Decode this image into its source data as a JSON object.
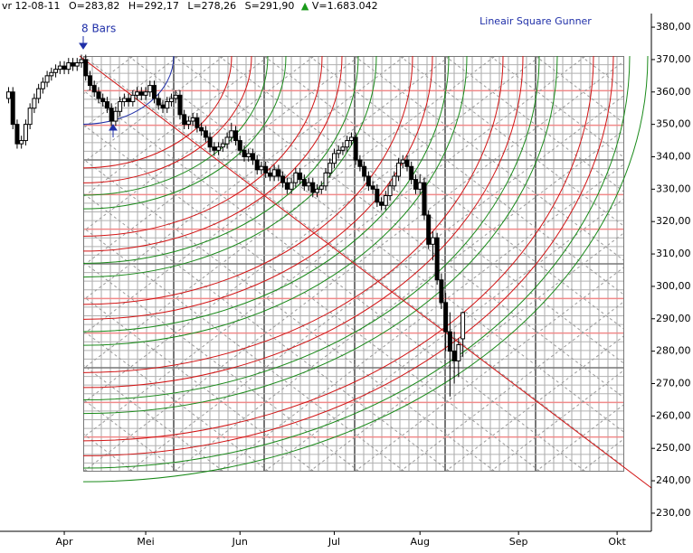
{
  "chart_data": {
    "type": "candlestick",
    "header": {
      "date": "vr 12-08-11",
      "open": "O=283,82",
      "high": "H=292,17",
      "low": "L=278,26",
      "close": "S=291,90",
      "up_symbol": "▲",
      "volume": "V=1.683.042"
    },
    "title": "Lineair Square Gunner",
    "annotation": "8 Bars",
    "xlim": [
      -2,
      150
    ],
    "xticks": [
      {
        "value": 13,
        "label": "Apr"
      },
      {
        "value": 32,
        "label": "Mei"
      },
      {
        "value": 54,
        "label": "Jun"
      },
      {
        "value": 76,
        "label": "Jul"
      },
      {
        "value": 96,
        "label": "Aug"
      },
      {
        "value": 119,
        "label": "Sep"
      },
      {
        "value": 142,
        "label": "Okt"
      }
    ],
    "ylim": [
      224.4,
      384.2
    ],
    "yticks": [
      {
        "value": 380,
        "label": "380,00"
      },
      {
        "value": 370,
        "label": "370,00"
      },
      {
        "value": 360,
        "label": "360,00"
      },
      {
        "value": 350,
        "label": "350,00"
      },
      {
        "value": 340,
        "label": "340,00"
      },
      {
        "value": 330,
        "label": "330,00"
      },
      {
        "value": 320,
        "label": "320,00"
      },
      {
        "value": 310,
        "label": "310,00"
      },
      {
        "value": 300,
        "label": "300,00"
      },
      {
        "value": 290,
        "label": "290,00"
      },
      {
        "value": 280,
        "label": "280,00"
      },
      {
        "value": 270,
        "label": "270,00"
      },
      {
        "value": 260,
        "label": "260,00"
      },
      {
        "value": 250,
        "label": "250,00"
      },
      {
        "value": 240,
        "label": "240,00"
      },
      {
        "value": 230,
        "label": "230,00"
      }
    ],
    "up_color": "#ffffff",
    "down_color": "#000000",
    "wick_color": "#000000",
    "series": [
      {
        "ohlc": [
          [
            358,
            361.5,
            356.5,
            360
          ],
          [
            360,
            361.5,
            348.5,
            350
          ],
          [
            350,
            351.5,
            342.5,
            344
          ],
          [
            344,
            346.5,
            342.5,
            345
          ],
          [
            345,
            351.5,
            343.5,
            350
          ],
          [
            350,
            356.5,
            348.5,
            355
          ],
          [
            355,
            359.5,
            353.5,
            358
          ],
          [
            358,
            362.5,
            356.5,
            361
          ],
          [
            361,
            364.5,
            359.5,
            363
          ],
          [
            363,
            366.5,
            361.5,
            365
          ],
          [
            365,
            367.5,
            363.5,
            366
          ],
          [
            366,
            368.5,
            364.5,
            367
          ],
          [
            367,
            369.5,
            365.5,
            368
          ],
          [
            368,
            369.5,
            365.5,
            367
          ],
          [
            367,
            370.5,
            365.5,
            369
          ],
          [
            369,
            370.5,
            366.5,
            368
          ],
          [
            368,
            370.5,
            366.5,
            369
          ],
          [
            369,
            371.5,
            367.5,
            370
          ],
          [
            370,
            371.5,
            363.5,
            365
          ],
          [
            365,
            366.5,
            360.5,
            362
          ],
          [
            362,
            363.5,
            358.5,
            360
          ],
          [
            360,
            361.5,
            356.5,
            358
          ],
          [
            358,
            359.5,
            355.5,
            357
          ],
          [
            357,
            358.5,
            353.5,
            355
          ],
          [
            355,
            356.5,
            349.5,
            351
          ],
          [
            351,
            355.5,
            349.5,
            354
          ],
          [
            354,
            358.5,
            352.5,
            357
          ],
          [
            357,
            359.5,
            355.5,
            358
          ],
          [
            358,
            359.5,
            355.5,
            357
          ],
          [
            357,
            360.5,
            355.5,
            359
          ],
          [
            359,
            361.5,
            357.5,
            360
          ],
          [
            360,
            361.5,
            357.5,
            359
          ],
          [
            359,
            361.5,
            357.5,
            360
          ],
          [
            360,
            363.5,
            358.5,
            362
          ],
          [
            362,
            363.5,
            356.5,
            358
          ],
          [
            358,
            359.5,
            354.5,
            356
          ],
          [
            356,
            357.5,
            353.5,
            355
          ],
          [
            355,
            358.5,
            353.5,
            357
          ],
          [
            357,
            359.5,
            355.5,
            358
          ],
          [
            358,
            360.5,
            356.5,
            359
          ],
          [
            359,
            360.5,
            351.5,
            353
          ],
          [
            353,
            354.5,
            348.5,
            350
          ],
          [
            350,
            352.5,
            348.5,
            351
          ],
          [
            351,
            353.5,
            349.5,
            352
          ],
          [
            352,
            353.5,
            347.5,
            349
          ],
          [
            349,
            350.5,
            346.5,
            348
          ],
          [
            348,
            349.5,
            344.5,
            346
          ],
          [
            346,
            347.5,
            341.5,
            343
          ],
          [
            343,
            344.5,
            340.5,
            342
          ],
          [
            342,
            344.5,
            340.5,
            343
          ],
          [
            343,
            345.5,
            341.5,
            344
          ],
          [
            344,
            347.5,
            342.5,
            346
          ],
          [
            346,
            350.5,
            344.5,
            348
          ],
          [
            348,
            349.5,
            343.5,
            345
          ],
          [
            345,
            346.5,
            340.5,
            342
          ],
          [
            342,
            343.5,
            338.5,
            340
          ],
          [
            340,
            342.5,
            338.5,
            341
          ],
          [
            341,
            342.5,
            337.5,
            339
          ],
          [
            339,
            340.5,
            334.5,
            336
          ],
          [
            336,
            338.5,
            334.5,
            337
          ],
          [
            337,
            338.5,
            333.5,
            335
          ],
          [
            335,
            336.5,
            332.5,
            334
          ],
          [
            334,
            337.5,
            332.5,
            336
          ],
          [
            336,
            337.5,
            332.5,
            334
          ],
          [
            334,
            335.5,
            330.5,
            332
          ],
          [
            332,
            333.5,
            328.5,
            330
          ],
          [
            330,
            333.5,
            328.5,
            332
          ],
          [
            332,
            336.5,
            330.5,
            335
          ],
          [
            335,
            336.5,
            331.5,
            333
          ],
          [
            333,
            334.5,
            329.5,
            331
          ],
          [
            331,
            333.5,
            329.5,
            332
          ],
          [
            332,
            333.5,
            327.5,
            329
          ],
          [
            329,
            331.5,
            327.5,
            330
          ],
          [
            330,
            332.5,
            328.5,
            331
          ],
          [
            331,
            336.5,
            329.5,
            335
          ],
          [
            335,
            339.5,
            333.5,
            338
          ],
          [
            338,
            342.5,
            336.5,
            341
          ],
          [
            341,
            343.5,
            339.5,
            342
          ],
          [
            342,
            344.5,
            340.5,
            343
          ],
          [
            343,
            346.5,
            341.5,
            345
          ],
          [
            345,
            347.5,
            343.5,
            346
          ],
          [
            346,
            347.5,
            337.5,
            339
          ],
          [
            339,
            340.5,
            335.5,
            337
          ],
          [
            337,
            338.5,
            332.5,
            334
          ],
          [
            334,
            335.5,
            329.5,
            331
          ],
          [
            331,
            332.5,
            328.5,
            330
          ],
          [
            330,
            331.5,
            324.5,
            326
          ],
          [
            326,
            327.5,
            323.5,
            325
          ],
          [
            325,
            329.5,
            323.5,
            328
          ],
          [
            328,
            332.5,
            326.5,
            331
          ],
          [
            331,
            335.5,
            329.5,
            334
          ],
          [
            334,
            339.5,
            332.5,
            338
          ],
          [
            338,
            340.5,
            336.5,
            339
          ],
          [
            339,
            340.5,
            335.5,
            337
          ],
          [
            337,
            338.5,
            331.5,
            333
          ],
          [
            333,
            334.5,
            328.5,
            330
          ],
          [
            330,
            334.5,
            328.5,
            332
          ],
          [
            332,
            333.5,
            320.5,
            322
          ],
          [
            322,
            323.5,
            311.5,
            313
          ],
          [
            313,
            317,
            308,
            315
          ],
          [
            315,
            316.5,
            300.5,
            302
          ],
          [
            302,
            304,
            293,
            295
          ],
          [
            295,
            298,
            280,
            286
          ],
          [
            286,
            292,
            266,
            280
          ],
          [
            280,
            286,
            270,
            277
          ],
          [
            277,
            284,
            272,
            282
          ],
          [
            283.82,
            292.17,
            278.26,
            291.9
          ]
        ]
      }
    ]
  }
}
